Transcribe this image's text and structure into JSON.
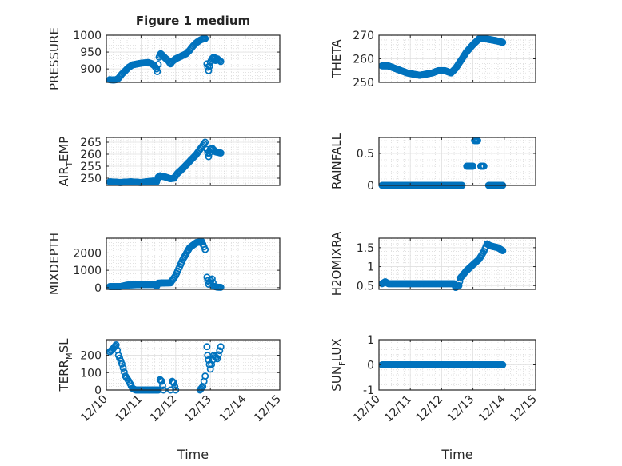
{
  "chart_data": [
    {
      "type": "scatter",
      "title": "Figure 1 medium",
      "ylabel_main": "PRESSURE",
      "ylabel_sub": "",
      "ylim": [
        860,
        1000
      ],
      "yticks": [
        900,
        950,
        1000
      ],
      "xlim": [
        0,
        5
      ],
      "xticks": [
        "12/10",
        "12/11",
        "12/12",
        "12/13",
        "12/14",
        "12/15"
      ],
      "show_xtick_labels": false,
      "grid": true,
      "marker": "open-circle",
      "color": "#0072BD",
      "keypoints": [
        [
          0.1,
          868
        ],
        [
          0.2,
          867
        ],
        [
          0.28,
          868
        ],
        [
          0.35,
          872
        ],
        [
          0.45,
          885
        ],
        [
          0.55,
          895
        ],
        [
          0.65,
          905
        ],
        [
          0.75,
          912
        ],
        [
          0.9,
          915
        ],
        [
          1.0,
          917
        ],
        [
          1.1,
          918
        ],
        [
          1.2,
          919
        ],
        [
          1.3,
          916
        ],
        [
          1.38,
          910
        ],
        [
          1.45,
          900
        ],
        [
          1.47,
          892
        ],
        [
          1.52,
          935
        ],
        [
          1.57,
          945
        ],
        [
          1.62,
          940
        ],
        [
          1.7,
          932
        ],
        [
          1.78,
          925
        ],
        [
          1.85,
          915
        ],
        [
          1.9,
          922
        ],
        [
          2.0,
          930
        ],
        [
          2.1,
          935
        ],
        [
          2.2,
          940
        ],
        [
          2.3,
          945
        ],
        [
          2.4,
          955
        ],
        [
          2.5,
          968
        ],
        [
          2.6,
          978
        ],
        [
          2.7,
          985
        ],
        [
          2.8,
          990
        ],
        [
          2.85,
          990
        ],
        [
          2.9,
          915
        ],
        [
          2.95,
          895
        ],
        [
          3.0,
          920
        ],
        [
          3.05,
          930
        ],
        [
          3.1,
          935
        ],
        [
          3.15,
          925
        ],
        [
          3.2,
          930
        ],
        [
          3.3,
          922
        ]
      ],
      "gaps": [
        1.47,
        2.88
      ]
    },
    {
      "type": "scatter",
      "title": "",
      "ylabel_main": "THETA",
      "ylabel_sub": "",
      "ylim": [
        250,
        270
      ],
      "yticks": [
        250,
        260,
        270
      ],
      "xlim": [
        0,
        5
      ],
      "xticks": [
        "12/10",
        "12/11",
        "12/12",
        "12/13",
        "12/14",
        "12/15"
      ],
      "show_xtick_labels": false,
      "grid": true,
      "marker": "open-circle",
      "color": "#0072BD",
      "keypoints": [
        [
          0.1,
          257
        ],
        [
          0.3,
          257
        ],
        [
          0.5,
          256
        ],
        [
          0.7,
          255
        ],
        [
          0.9,
          254
        ],
        [
          1.1,
          253.5
        ],
        [
          1.3,
          253
        ],
        [
          1.5,
          253.5
        ],
        [
          1.7,
          254
        ],
        [
          1.9,
          255
        ],
        [
          2.1,
          255
        ],
        [
          2.2,
          254.5
        ],
        [
          2.3,
          254
        ],
        [
          2.45,
          256
        ],
        [
          2.6,
          259
        ],
        [
          2.8,
          263
        ],
        [
          3.0,
          266
        ],
        [
          3.2,
          268.5
        ],
        [
          3.4,
          268.5
        ],
        [
          3.6,
          268
        ],
        [
          3.8,
          267.5
        ],
        [
          3.95,
          267
        ]
      ],
      "gaps": []
    },
    {
      "type": "scatter",
      "title": "",
      "ylabel_main": "AIR",
      "ylabel_sub": "T",
      "ylabel_tail": "EMP",
      "ylim": [
        247,
        267
      ],
      "yticks": [
        250,
        255,
        260,
        265
      ],
      "xlim": [
        0,
        5
      ],
      "xticks": [
        "12/10",
        "12/11",
        "12/12",
        "12/13",
        "12/14",
        "12/15"
      ],
      "show_xtick_labels": false,
      "grid": true,
      "marker": "open-circle",
      "color": "#0072BD",
      "keypoints": [
        [
          0.1,
          248.5
        ],
        [
          0.4,
          248.2
        ],
        [
          0.7,
          248.5
        ],
        [
          1.0,
          248.2
        ],
        [
          1.2,
          248.6
        ],
        [
          1.35,
          248.8
        ],
        [
          1.45,
          248.5
        ],
        [
          1.5,
          250.5
        ],
        [
          1.55,
          251
        ],
        [
          1.7,
          250.5
        ],
        [
          1.85,
          249.8
        ],
        [
          1.95,
          250
        ],
        [
          2.05,
          252
        ],
        [
          2.2,
          254
        ],
        [
          2.4,
          257
        ],
        [
          2.6,
          260
        ],
        [
          2.75,
          263
        ],
        [
          2.85,
          265
        ],
        [
          2.9,
          262
        ],
        [
          2.95,
          259
        ],
        [
          3.0,
          262
        ],
        [
          3.05,
          262.5
        ],
        [
          3.15,
          261
        ],
        [
          3.3,
          260.5
        ]
      ],
      "gaps": [
        2.88
      ]
    },
    {
      "type": "scatter",
      "title": "",
      "ylabel_main": "RAINFALL",
      "ylabel_sub": "",
      "ylim": [
        0,
        0.75
      ],
      "yticks": [
        0,
        0.5
      ],
      "xlim": [
        0,
        5
      ],
      "xticks": [
        "12/10",
        "12/11",
        "12/12",
        "12/13",
        "12/14",
        "12/15"
      ],
      "show_xtick_labels": false,
      "grid": true,
      "marker": "open-circle",
      "color": "#0072BD",
      "keypoints": [
        [
          0.1,
          0
        ],
        [
          2.65,
          0
        ],
        [
          2.8,
          0.3
        ],
        [
          3.0,
          0.3
        ],
        [
          3.05,
          0.7
        ],
        [
          3.15,
          0.7
        ],
        [
          3.25,
          0.3
        ],
        [
          3.35,
          0.3
        ],
        [
          3.5,
          0
        ],
        [
          3.95,
          0
        ]
      ],
      "gaps": [
        2.7,
        3.02,
        3.22,
        3.45
      ]
    },
    {
      "type": "scatter",
      "title": "",
      "ylabel_main": "MIXDEPTH",
      "ylabel_sub": "",
      "ylim": [
        -100,
        2850
      ],
      "yticks": [
        0,
        1000,
        2000
      ],
      "xlim": [
        0,
        5
      ],
      "xticks": [
        "12/10",
        "12/11",
        "12/12",
        "12/13",
        "12/14",
        "12/15"
      ],
      "show_xtick_labels": false,
      "grid": true,
      "marker": "open-circle",
      "color": "#0072BD",
      "keypoints": [
        [
          0.1,
          60
        ],
        [
          0.4,
          60
        ],
        [
          0.6,
          150
        ],
        [
          1.0,
          180
        ],
        [
          1.4,
          180
        ],
        [
          1.45,
          80
        ],
        [
          1.5,
          260
        ],
        [
          1.85,
          280
        ],
        [
          2.0,
          700
        ],
        [
          2.2,
          1600
        ],
        [
          2.4,
          2300
        ],
        [
          2.6,
          2600
        ],
        [
          2.75,
          2650
        ],
        [
          2.85,
          2200
        ],
        [
          2.9,
          600
        ],
        [
          2.95,
          200
        ],
        [
          3.05,
          500
        ],
        [
          3.1,
          80
        ],
        [
          3.2,
          30
        ],
        [
          3.3,
          20
        ]
      ],
      "gaps": [
        2.88
      ]
    },
    {
      "type": "scatter",
      "title": "",
      "ylabel_main": "H2OMIXRA",
      "ylabel_sub": "",
      "ylim": [
        0.4,
        1.75
      ],
      "yticks": [
        0.5,
        1,
        1.5
      ],
      "xlim": [
        0,
        5
      ],
      "xticks": [
        "12/10",
        "12/11",
        "12/12",
        "12/13",
        "12/14",
        "12/15"
      ],
      "show_xtick_labels": false,
      "grid": true,
      "marker": "open-circle",
      "color": "#0072BD",
      "keypoints": [
        [
          0.1,
          0.55
        ],
        [
          0.2,
          0.6
        ],
        [
          0.3,
          0.55
        ],
        [
          2.4,
          0.55
        ],
        [
          2.45,
          0.45
        ],
        [
          2.55,
          0.5
        ],
        [
          2.6,
          0.7
        ],
        [
          2.8,
          0.9
        ],
        [
          3.0,
          1.05
        ],
        [
          3.2,
          1.2
        ],
        [
          3.35,
          1.4
        ],
        [
          3.45,
          1.6
        ],
        [
          3.55,
          1.55
        ],
        [
          3.8,
          1.5
        ],
        [
          3.95,
          1.42
        ]
      ],
      "gaps": []
    },
    {
      "type": "scatter",
      "title": "",
      "ylabel_main": "TERR",
      "ylabel_sub": "M",
      "ylabel_tail": "SL",
      "ylim": [
        0,
        290
      ],
      "yticks": [
        0,
        100,
        200
      ],
      "xlim": [
        0,
        5
      ],
      "xticks": [
        "12/10",
        "12/11",
        "12/12",
        "12/13",
        "12/14",
        "12/15"
      ],
      "show_xtick_labels": true,
      "grid": true,
      "marker": "open-circle",
      "color": "#0072BD",
      "keypoints": [
        [
          0.1,
          220
        ],
        [
          0.2,
          240
        ],
        [
          0.28,
          260
        ],
        [
          0.35,
          200
        ],
        [
          0.45,
          150
        ],
        [
          0.55,
          80
        ],
        [
          0.65,
          50
        ],
        [
          0.75,
          10
        ],
        [
          0.85,
          0
        ],
        [
          1.5,
          0
        ],
        [
          1.55,
          60
        ],
        [
          1.6,
          50
        ],
        [
          1.65,
          0
        ],
        [
          1.85,
          0
        ],
        [
          1.9,
          50
        ],
        [
          1.95,
          40
        ],
        [
          2.0,
          0
        ],
        [
          2.7,
          0
        ],
        [
          2.78,
          20
        ],
        [
          2.85,
          80
        ],
        [
          2.9,
          250
        ],
        [
          2.92,
          200
        ],
        [
          3.0,
          120
        ],
        [
          3.1,
          200
        ],
        [
          3.2,
          180
        ],
        [
          3.3,
          250
        ]
      ],
      "gaps": [
        1.52,
        1.67,
        1.88,
        2.02,
        2.88
      ]
    },
    {
      "type": "scatter",
      "title": "",
      "ylabel_main": "SUN",
      "ylabel_sub": "F",
      "ylabel_tail": "LUX",
      "ylim": [
        -1,
        1
      ],
      "yticks": [
        -1,
        0,
        1
      ],
      "xlim": [
        0,
        5
      ],
      "xticks": [
        "12/10",
        "12/11",
        "12/12",
        "12/13",
        "12/14",
        "12/15"
      ],
      "show_xtick_labels": true,
      "grid": true,
      "marker": "open-circle",
      "color": "#0072BD",
      "keypoints": [
        [
          0.1,
          0
        ],
        [
          3.95,
          0
        ]
      ],
      "gaps": []
    }
  ],
  "xlabel": "Time"
}
